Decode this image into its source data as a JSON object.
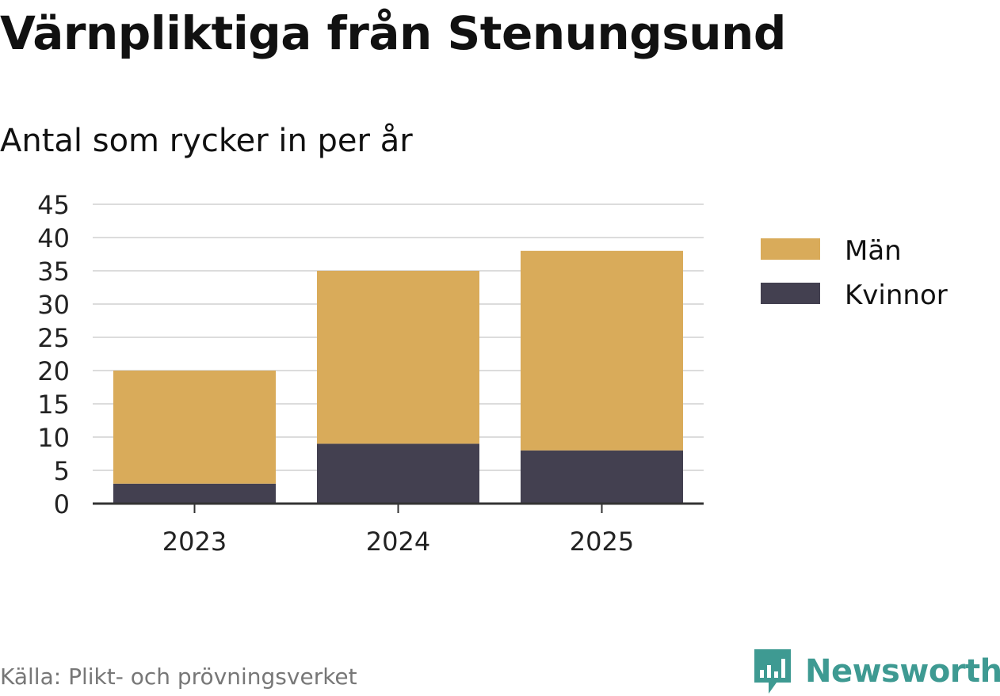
{
  "title": "Värnpliktiga från Stenungsund",
  "subtitle": "Antal som rycker in per år",
  "source": "Källa: Plikt- och prövningsverket",
  "brand": {
    "name": "Newsworthy",
    "color": "#3e9a92",
    "icon": "bar-chart-logo-icon"
  },
  "chart_data": {
    "type": "bar",
    "stacked": true,
    "categories": [
      "2023",
      "2024",
      "2025"
    ],
    "series": [
      {
        "name": "Kvinnor",
        "values": [
          3,
          9,
          8
        ],
        "color": "#434050"
      },
      {
        "name": "Män",
        "values": [
          17,
          26,
          30
        ],
        "color": "#d9ab5a"
      }
    ],
    "ylim": [
      0,
      45
    ],
    "yticks": [
      0,
      5,
      10,
      15,
      20,
      25,
      30,
      35,
      40,
      45
    ],
    "grid": true,
    "legend": {
      "position": "right",
      "order": [
        "Män",
        "Kvinnor"
      ]
    }
  }
}
